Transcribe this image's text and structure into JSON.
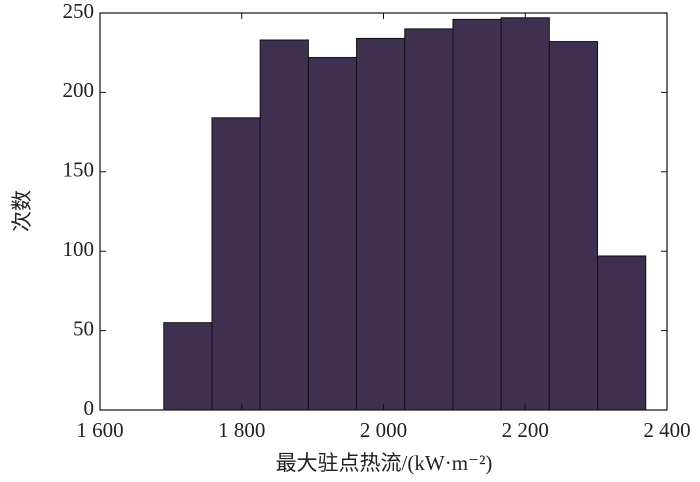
{
  "chart_data": {
    "type": "histogram",
    "xlabel": "最大驻点热流/(kW·m⁻²)",
    "ylabel": "次数",
    "bins": [
      1690,
      1758,
      1826,
      1894,
      1962,
      2030,
      2098,
      2166,
      2234,
      2302,
      2370
    ],
    "values": [
      55,
      184,
      233,
      222,
      234,
      240,
      246,
      247,
      232,
      97
    ],
    "color": "#3f3050",
    "xlim": [
      1600,
      2400
    ],
    "ylim": [
      0,
      250
    ],
    "xticks": [
      {
        "value": 1600,
        "label": "1 600"
      },
      {
        "value": 1800,
        "label": "1 800"
      },
      {
        "value": 2000,
        "label": "2 000"
      },
      {
        "value": 2200,
        "label": "2 200"
      },
      {
        "value": 2400,
        "label": "2 400"
      }
    ],
    "yticks": [
      0,
      50,
      100,
      150,
      200,
      250
    ]
  }
}
